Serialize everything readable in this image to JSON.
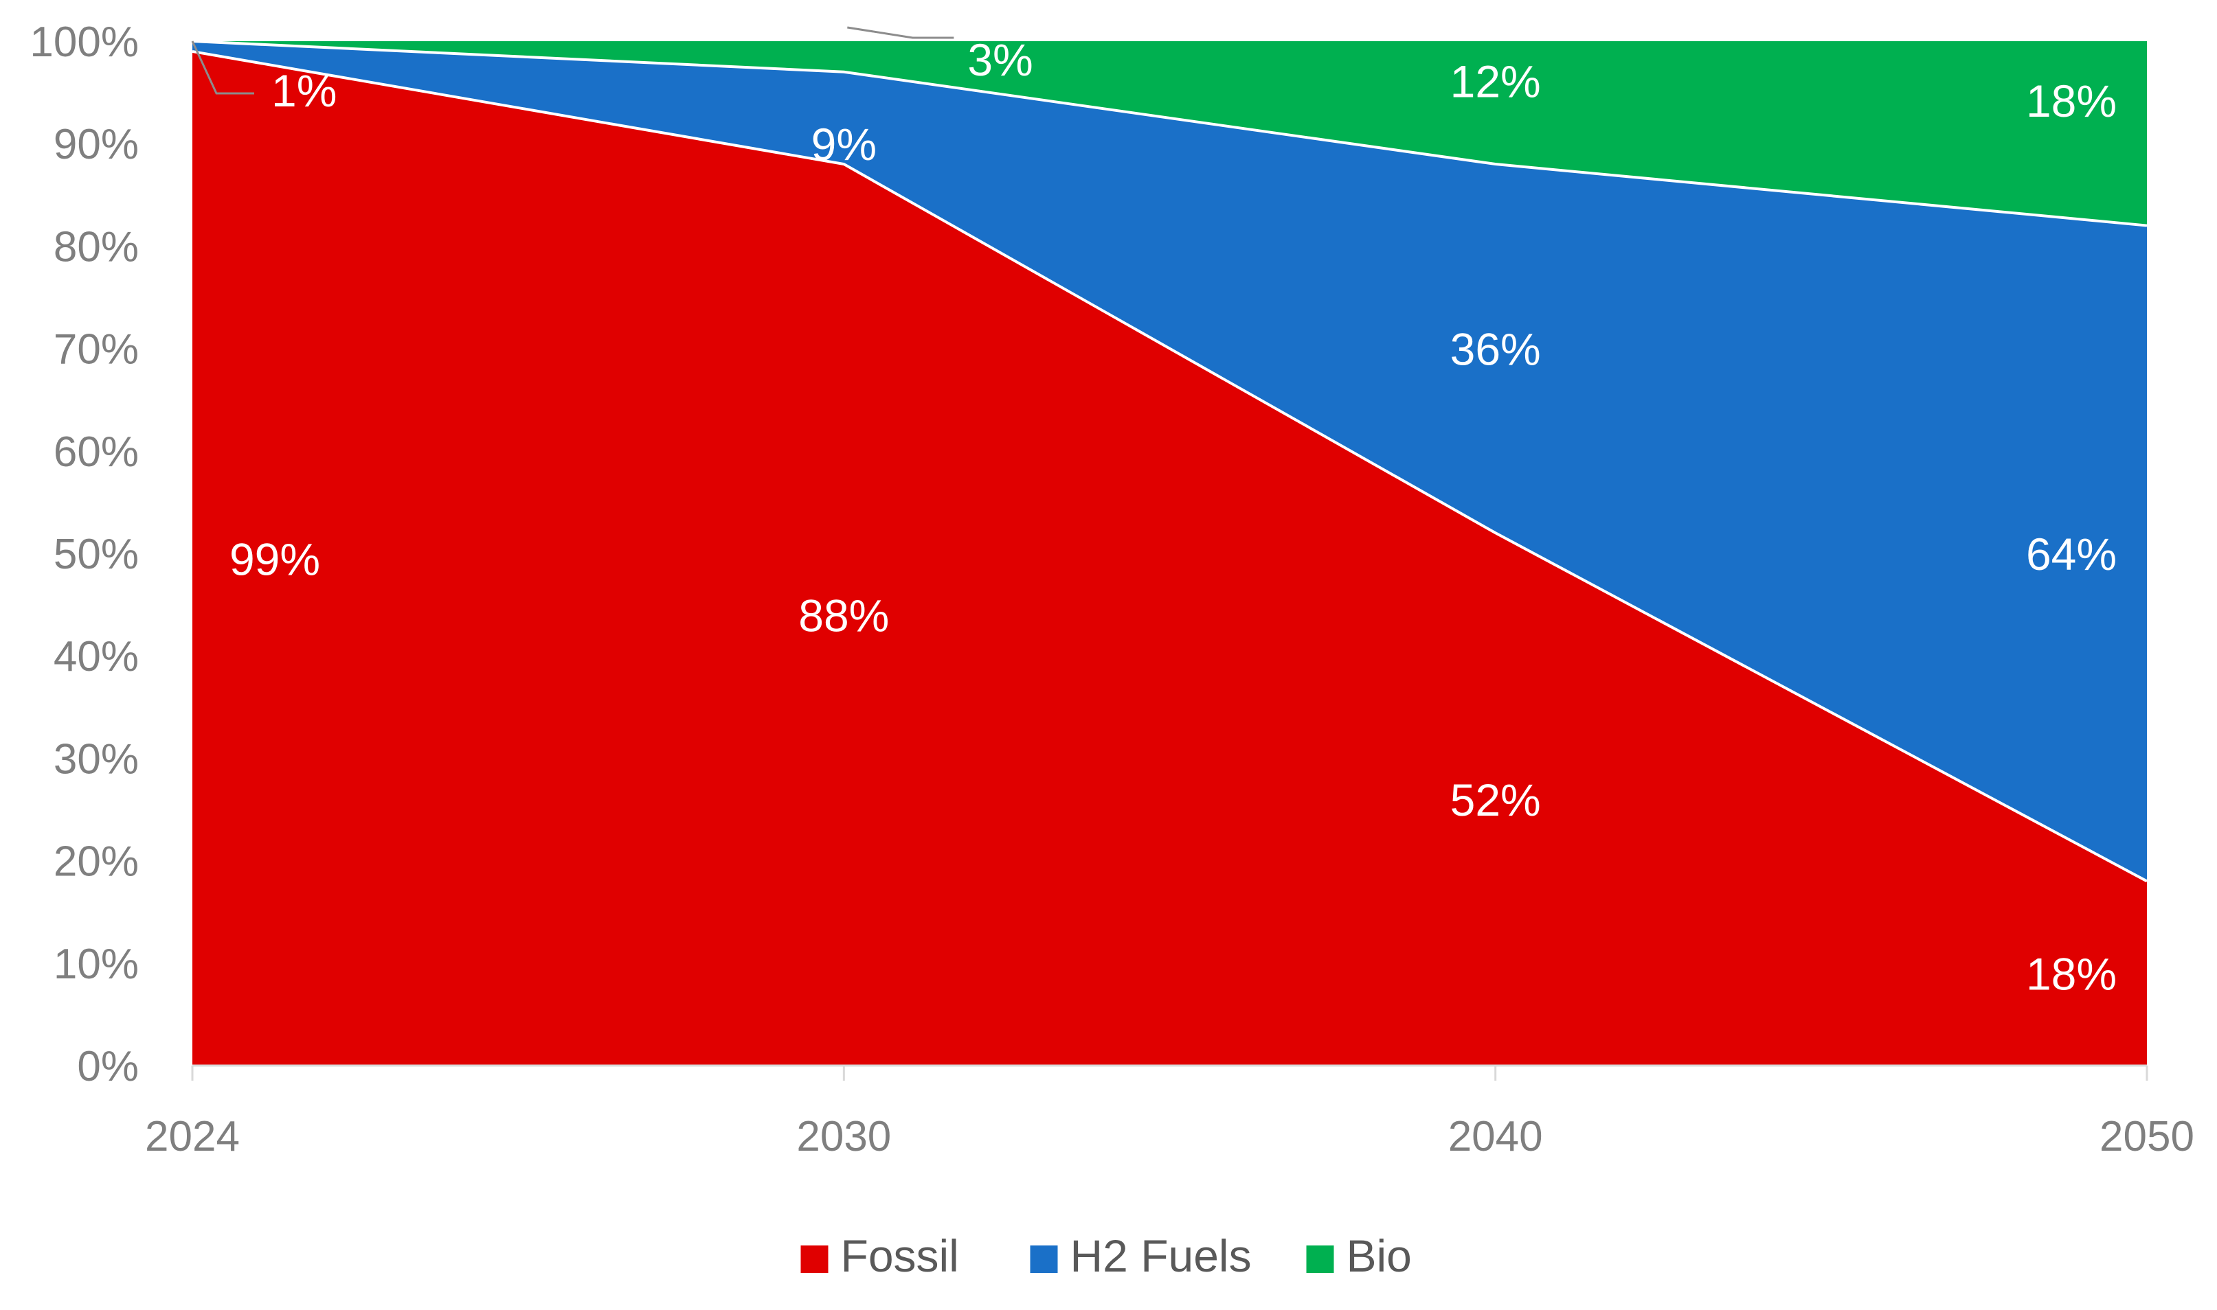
{
  "chart_data": {
    "type": "area",
    "stacked": "percent",
    "title": "",
    "xlabel": "",
    "ylabel": "",
    "categories": [
      "2024",
      "2030",
      "2040",
      "2050"
    ],
    "ylim": [
      0,
      100
    ],
    "yticks": [
      "0%",
      "10%",
      "20%",
      "30%",
      "40%",
      "50%",
      "60%",
      "70%",
      "80%",
      "90%",
      "100%"
    ],
    "series": [
      {
        "name": "Fossil",
        "color": "#e00000",
        "values": [
          99,
          88,
          52,
          18
        ],
        "labels": [
          "99%",
          "88%",
          "52%",
          "18%"
        ]
      },
      {
        "name": "H2 Fuels",
        "color": "#1a70c8",
        "values": [
          1,
          9,
          36,
          64
        ],
        "labels": [
          "1%",
          "9%",
          "36%",
          "64%"
        ]
      },
      {
        "name": "Bio",
        "color": "#00b050",
        "values": [
          0,
          3,
          12,
          18
        ],
        "labels": [
          "",
          "3%",
          "12%",
          "18%"
        ]
      }
    ],
    "legend_position": "bottom",
    "grid": false
  }
}
